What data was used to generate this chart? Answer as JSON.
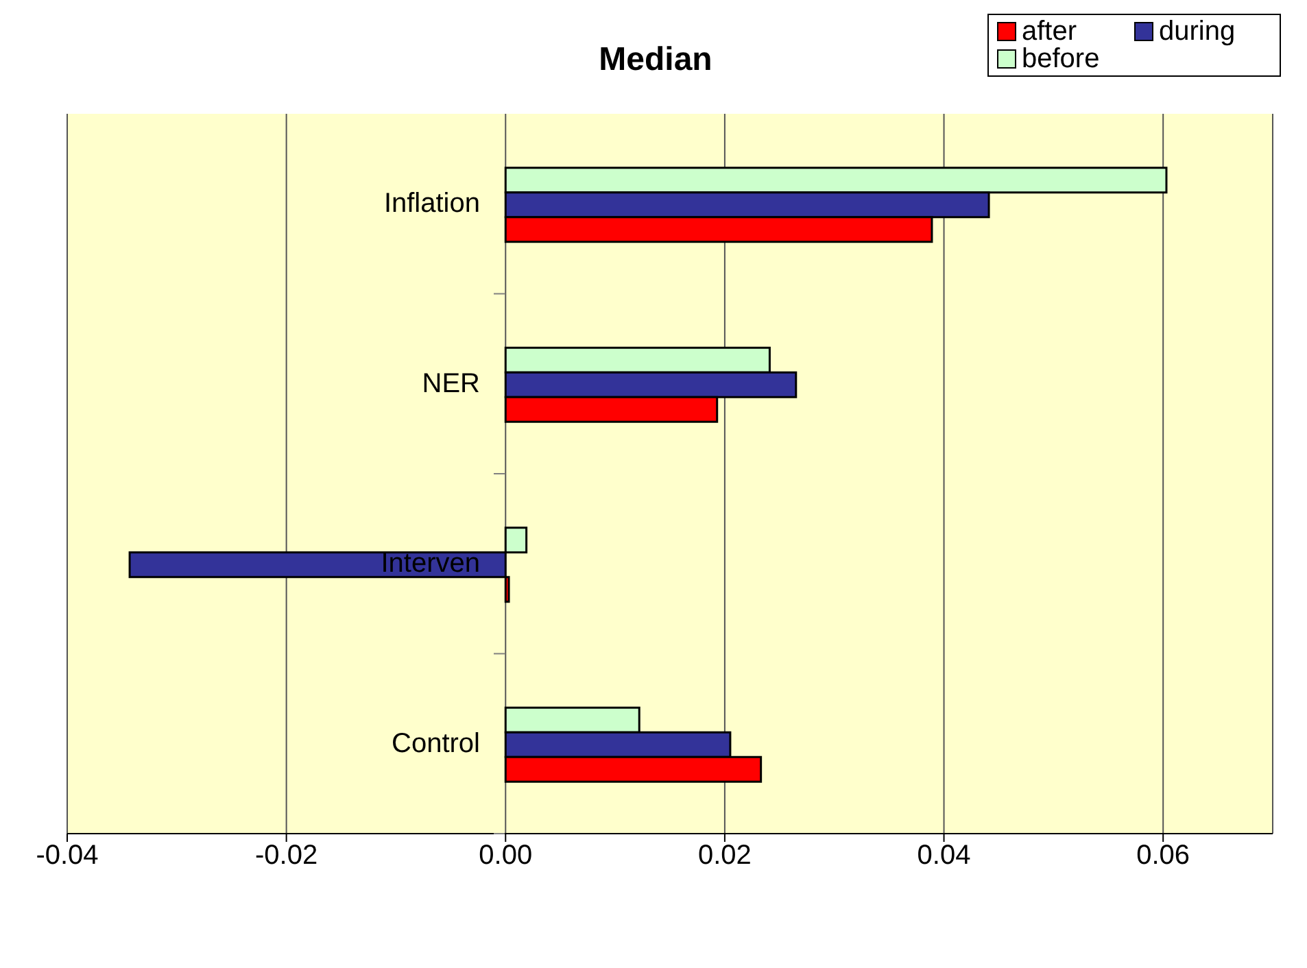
{
  "chart_data": {
    "type": "bar",
    "title": "Median",
    "orientation": "horizontal",
    "categories": [
      "Inflation",
      "NER",
      "Interven",
      "Control"
    ],
    "series": [
      {
        "name": "after",
        "color": "#ff0000",
        "values": [
          0.0389,
          0.0193,
          0.0003,
          0.0233
        ]
      },
      {
        "name": "during",
        "color": "#333399",
        "values": [
          0.0441,
          0.0265,
          -0.0343,
          0.0205
        ]
      },
      {
        "name": "before",
        "color": "#ccffcc",
        "values": [
          0.0603,
          0.0241,
          0.0019,
          0.0122
        ]
      }
    ],
    "xlim": [
      -0.04,
      0.07
    ],
    "xticks": [
      {
        "value": -0.04,
        "label": "-0.04"
      },
      {
        "value": -0.02,
        "label": "-0.02"
      },
      {
        "value": 0,
        "label": "0.00"
      },
      {
        "value": 0.02,
        "label": "0.02"
      },
      {
        "value": 0.04,
        "label": "0.04"
      },
      {
        "value": 0.06,
        "label": "0.06"
      }
    ],
    "grid": "x",
    "legend": "top right"
  }
}
